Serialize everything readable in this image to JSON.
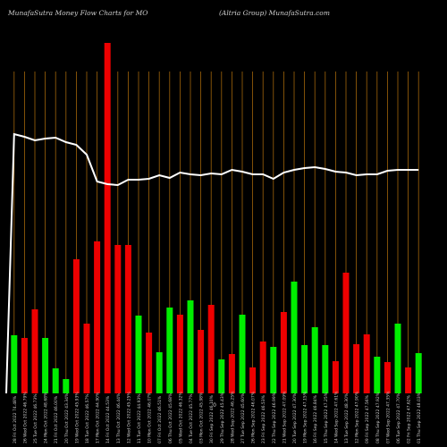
{
  "header": {
    "left": "MunafaSutra  Money Flow  Charts for MO",
    "right": "(Altria  Group) MunafaSutra.com"
  },
  "chart_data": {
    "type": "bar",
    "grid": "vertical lines",
    "zero_label": "0",
    "colors": {
      "up": "#00ee00",
      "down": "#ee0000",
      "line": "#ffffff",
      "grid": "#a0640a",
      "background": "#000000"
    },
    "bars": [
      {
        "value": 65,
        "color": "up"
      },
      {
        "value": 62,
        "color": "down"
      },
      {
        "value": 94,
        "color": "down"
      },
      {
        "value": 62,
        "color": "up"
      },
      {
        "value": 28,
        "color": "up"
      },
      {
        "value": 16,
        "color": "up"
      },
      {
        "value": 150,
        "color": "down"
      },
      {
        "value": 78,
        "color": "down"
      },
      {
        "value": 170,
        "color": "down"
      },
      {
        "value": 392,
        "color": "down"
      },
      {
        "value": 166,
        "color": "down"
      },
      {
        "value": 166,
        "color": "down"
      },
      {
        "value": 87,
        "color": "up"
      },
      {
        "value": 68,
        "color": "down"
      },
      {
        "value": 46,
        "color": "up"
      },
      {
        "value": 96,
        "color": "up"
      },
      {
        "value": 88,
        "color": "down"
      },
      {
        "value": 104,
        "color": "up"
      },
      {
        "value": 71,
        "color": "down"
      },
      {
        "value": 99,
        "color": "down"
      },
      {
        "value": 38,
        "color": "up"
      },
      {
        "value": 44,
        "color": "down"
      },
      {
        "value": 88,
        "color": "up"
      },
      {
        "value": 29,
        "color": "down"
      },
      {
        "value": 58,
        "color": "down"
      },
      {
        "value": 52,
        "color": "up"
      },
      {
        "value": 91,
        "color": "down"
      },
      {
        "value": 125,
        "color": "up"
      },
      {
        "value": 54,
        "color": "up"
      },
      {
        "value": 74,
        "color": "up"
      },
      {
        "value": 54,
        "color": "up"
      },
      {
        "value": 36,
        "color": "down"
      },
      {
        "value": 135,
        "color": "down"
      },
      {
        "value": 55,
        "color": "down"
      },
      {
        "value": 66,
        "color": "down"
      },
      {
        "value": 41,
        "color": "up"
      },
      {
        "value": 35,
        "color": "down"
      },
      {
        "value": 78,
        "color": "up"
      },
      {
        "value": 29,
        "color": "down"
      },
      {
        "value": 45,
        "color": "up"
      }
    ],
    "line_values": [
      0,
      290,
      287,
      283,
      285,
      286,
      281,
      278,
      267,
      237,
      234,
      233,
      239,
      239,
      240,
      244,
      241,
      247,
      245,
      244,
      246,
      245,
      250,
      248,
      245,
      245,
      240,
      247,
      250,
      252,
      253,
      251,
      248,
      247,
      244,
      245,
      245,
      249,
      250,
      250,
      250
    ],
    "date_labels": [
      "28 Fri Oct 2022 74.48%",
      "26 Wed Oct 2022 46.79%",
      "25 Tue Oct 2022 46.73%",
      "24 Mon Oct 2022 48.68%",
      "21 Fri Oct 2022 46.00%",
      "20 Thu Oct 2022 43.34%",
      "19 Wed Oct 2022 45.93%",
      "18 Tue Oct 2022 46.57%",
      "17 Mon Oct 2022 44.90%",
      "14 Fri Oct 2022 44.53%",
      "13 Thu Oct 2022 46.44%",
      "12 Wed Oct 2022 45.25%",
      "11 Tue Oct 2022 44.93%",
      "10 Mon Oct 2022 46.07%",
      "07 Fri Oct 2022 46.51%",
      "06 Thu Oct 2022 45.68%",
      "05 Wed Oct 2022 46.32%",
      "04 Tue Oct 2022 45.77%",
      "03 Mon Oct 2022 45.98%",
      "30 Fri Sep 2022 46.10%",
      "29 Thu Sep 2022 45.43%",
      "28 Wed Sep 2022 46.25%",
      "27 Tue Sep 2022 45.60%",
      "26 Mon Sep 2022 46.07%",
      "23 Fri Sep 2022 46.53%",
      "22 Thu Sep 2022 46.99%",
      "21 Wed Sep 2022 47.09%",
      "20 Tue Sep 2022 47.30%",
      "19 Mon Sep 2022 47.15%",
      "16 Fri Sep 2022 46.84%",
      "15 Thu Sep 2022 47.25%",
      "14 Wed Sep 2022 47.61%",
      "13 Tue Sep 2022 48.30%",
      "12 Mon Sep 2022 47.90%",
      "09 Fri Sep 2022 47.56%",
      "08 Thu Sep 2022 47.92%",
      "07 Wed Sep 2022 47.35%",
      "06 Tue Sep 2022 47.70%",
      "02 Fri Sep 2022 47.62%",
      "01 Thu Sep 2022 48.03%"
    ]
  }
}
